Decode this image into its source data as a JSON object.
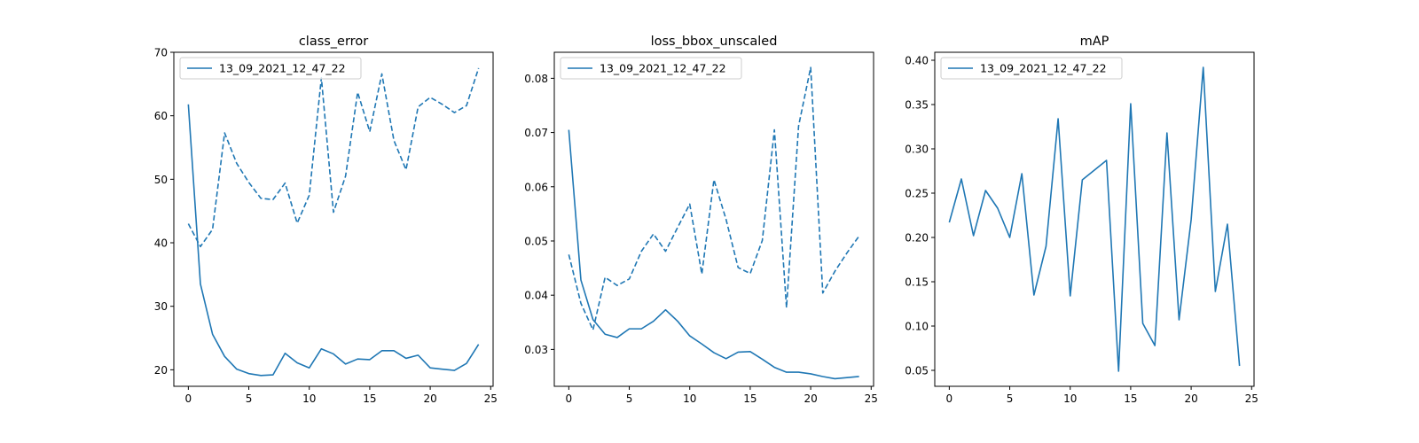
{
  "chart_data": [
    {
      "type": "line",
      "title": "class_error",
      "xlabel": "",
      "ylabel": "",
      "xlim": [
        -1.2,
        25.2
      ],
      "ylim": [
        17.4,
        70.0
      ],
      "xticks": [
        0,
        5,
        10,
        15,
        20,
        25
      ],
      "yticks": [
        20,
        30,
        40,
        50,
        60,
        70
      ],
      "ytick_labels": [
        "20",
        "30",
        "40",
        "50",
        "60",
        "70"
      ],
      "grid": false,
      "legend": {
        "placement": "top-left",
        "entries": [
          "13_09_2021_12_47_22"
        ]
      },
      "color": "#1f77b4",
      "x": [
        0,
        1,
        2,
        3,
        4,
        5,
        6,
        7,
        8,
        9,
        10,
        11,
        12,
        13,
        14,
        15,
        16,
        17,
        18,
        19,
        20,
        21,
        22,
        23,
        24
      ],
      "series": [
        {
          "name": "13_09_2021_12_47_22",
          "style": "solid",
          "values": [
            61.8,
            33.5,
            25.6,
            22.1,
            20.1,
            19.4,
            19.1,
            19.2,
            22.6,
            21.1,
            20.3,
            23.3,
            22.5,
            20.9,
            21.7,
            21.6,
            23.0,
            23.0,
            21.8,
            22.3,
            20.3,
            20.1,
            19.9,
            21.0,
            24.0
          ]
        },
        {
          "name": "",
          "style": "dashed",
          "values": [
            43.0,
            39.4,
            42.1,
            57.3,
            52.5,
            49.5,
            47.0,
            46.8,
            49.4,
            43.1,
            47.5,
            66.0,
            44.8,
            50.5,
            63.7,
            57.5,
            66.6,
            56.1,
            51.5,
            61.4,
            62.9,
            61.8,
            60.5,
            61.6,
            67.5
          ]
        }
      ]
    },
    {
      "type": "line",
      "title": "loss_bbox_unscaled",
      "xlabel": "",
      "ylabel": "",
      "xlim": [
        -1.2,
        25.2
      ],
      "ylim": [
        0.0232,
        0.0848
      ],
      "xticks": [
        0,
        5,
        10,
        15,
        20,
        25
      ],
      "yticks": [
        0.03,
        0.04,
        0.05,
        0.06,
        0.07,
        0.08
      ],
      "ytick_labels": [
        "0.03",
        "0.04",
        "0.05",
        "0.06",
        "0.07",
        "0.08"
      ],
      "grid": false,
      "legend": {
        "placement": "top-left",
        "entries": [
          "13_09_2021_12_47_22"
        ]
      },
      "color": "#1f77b4",
      "x": [
        0,
        1,
        2,
        3,
        4,
        5,
        6,
        7,
        8,
        9,
        10,
        11,
        12,
        13,
        14,
        15,
        16,
        17,
        18,
        19,
        20,
        21,
        22,
        23,
        24
      ],
      "series": [
        {
          "name": "13_09_2021_12_47_22",
          "style": "solid",
          "values": [
            0.0705,
            0.0428,
            0.0355,
            0.0328,
            0.0322,
            0.0338,
            0.0338,
            0.0352,
            0.0373,
            0.0352,
            0.0325,
            0.031,
            0.0294,
            0.0283,
            0.0295,
            0.0296,
            0.0282,
            0.0267,
            0.0258,
            0.0258,
            0.0255,
            0.025,
            0.0246,
            0.0248,
            0.025
          ]
        },
        {
          "name": "",
          "style": "dashed",
          "values": [
            0.0475,
            0.0385,
            0.0336,
            0.0433,
            0.0418,
            0.043,
            0.0481,
            0.0513,
            0.0481,
            0.0525,
            0.0568,
            0.0439,
            0.0613,
            0.054,
            0.0451,
            0.044,
            0.0501,
            0.0705,
            0.0377,
            0.0712,
            0.082,
            0.0404,
            0.0444,
            0.0478,
            0.0509
          ]
        }
      ]
    },
    {
      "type": "line",
      "title": "mAP",
      "xlabel": "",
      "ylabel": "",
      "xlim": [
        -1.2,
        25.2
      ],
      "ylim": [
        0.032,
        0.409
      ],
      "xticks": [
        0,
        5,
        10,
        15,
        20,
        25
      ],
      "yticks": [
        0.05,
        0.1,
        0.15,
        0.2,
        0.25,
        0.3,
        0.35,
        0.4
      ],
      "ytick_labels": [
        "0.05",
        "0.10",
        "0.15",
        "0.20",
        "0.25",
        "0.30",
        "0.35",
        "0.40"
      ],
      "grid": false,
      "legend": {
        "placement": "top-left",
        "entries": [
          "13_09_2021_12_47_22"
        ]
      },
      "color": "#1f77b4",
      "x": [
        0,
        1,
        2,
        3,
        4,
        5,
        6,
        7,
        8,
        9,
        10,
        11,
        12,
        13,
        14,
        15,
        16,
        17,
        18,
        19,
        20,
        21,
        22,
        23,
        24
      ],
      "series": [
        {
          "name": "13_09_2021_12_47_22",
          "style": "solid",
          "values": [
            0.217,
            0.266,
            0.202,
            0.253,
            0.233,
            0.2,
            0.272,
            0.135,
            0.19,
            0.334,
            0.134,
            0.265,
            0.276,
            0.287,
            0.049,
            0.351,
            0.103,
            0.078,
            0.318,
            0.107,
            0.22,
            0.392,
            0.139,
            0.215,
            0.055
          ]
        }
      ]
    }
  ]
}
